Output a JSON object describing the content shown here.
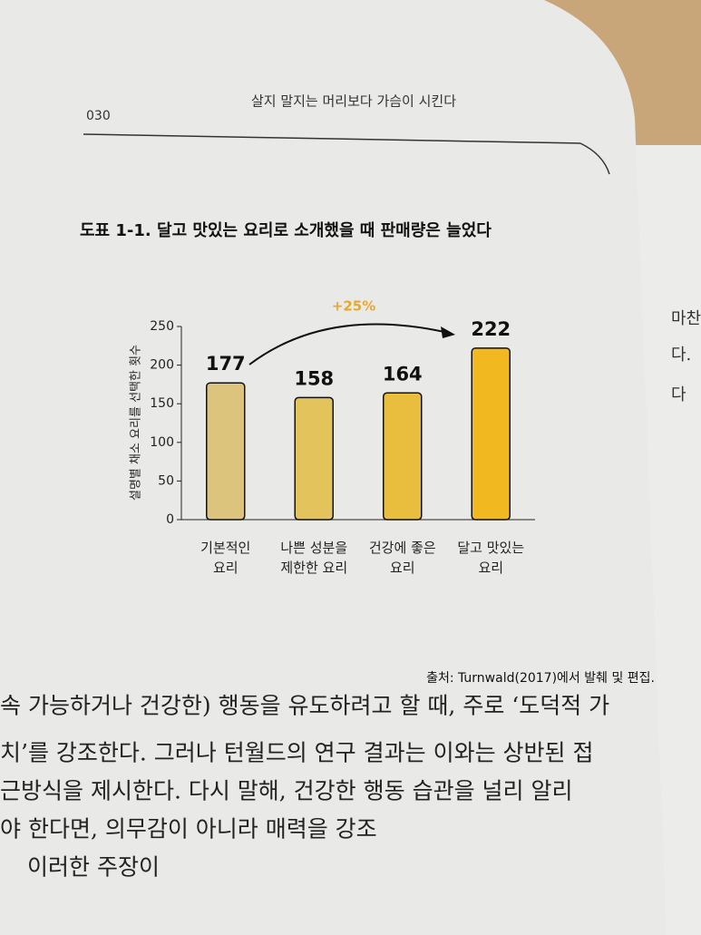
{
  "header": {
    "page_number": "030",
    "running_title": "살지 말지는 머리보다 가슴이 시킨다"
  },
  "chart_data": {
    "type": "bar",
    "title": "도표 1-1. 달고 맛있는 요리로 소개했을 때 판매량은 늘었다",
    "y_label": "설명별 채소 요리를 선택한 횟수",
    "categories": [
      "기본적인\n요리",
      "나쁜 성분을\n제한한 요리",
      "건강에 좋은\n요리",
      "달고 맛있는\n요리"
    ],
    "values": [
      177,
      158,
      164,
      222
    ],
    "colors": [
      "#dcc47c",
      "#e2c35c",
      "#e9be3e",
      "#f1b81f"
    ],
    "ylim": [
      0,
      250
    ],
    "yticks": [
      0,
      50,
      100,
      150,
      200,
      250
    ],
    "annotation": "+25%",
    "source": "출처: Turnwald(2017)에서 발췌 및 편집."
  },
  "body": {
    "lines": [
      "속 가능하거나 건강한) 행동을 유도하려고 할 때, 주로 ‘도덕적 가",
      "치’를 강조한다. 그러나 턴월드의 연구 결과는 이와는 상반된 접",
      "근방식을 제시한다. 다시 말해, 건강한 행동 습관을 널리 알리",
      "야 한다면, 의무감이 아니라 매력을 강조",
      "이러한 주장이"
    ],
    "right_page_fragments": [
      "마찬",
      "다.",
      "다"
    ]
  }
}
